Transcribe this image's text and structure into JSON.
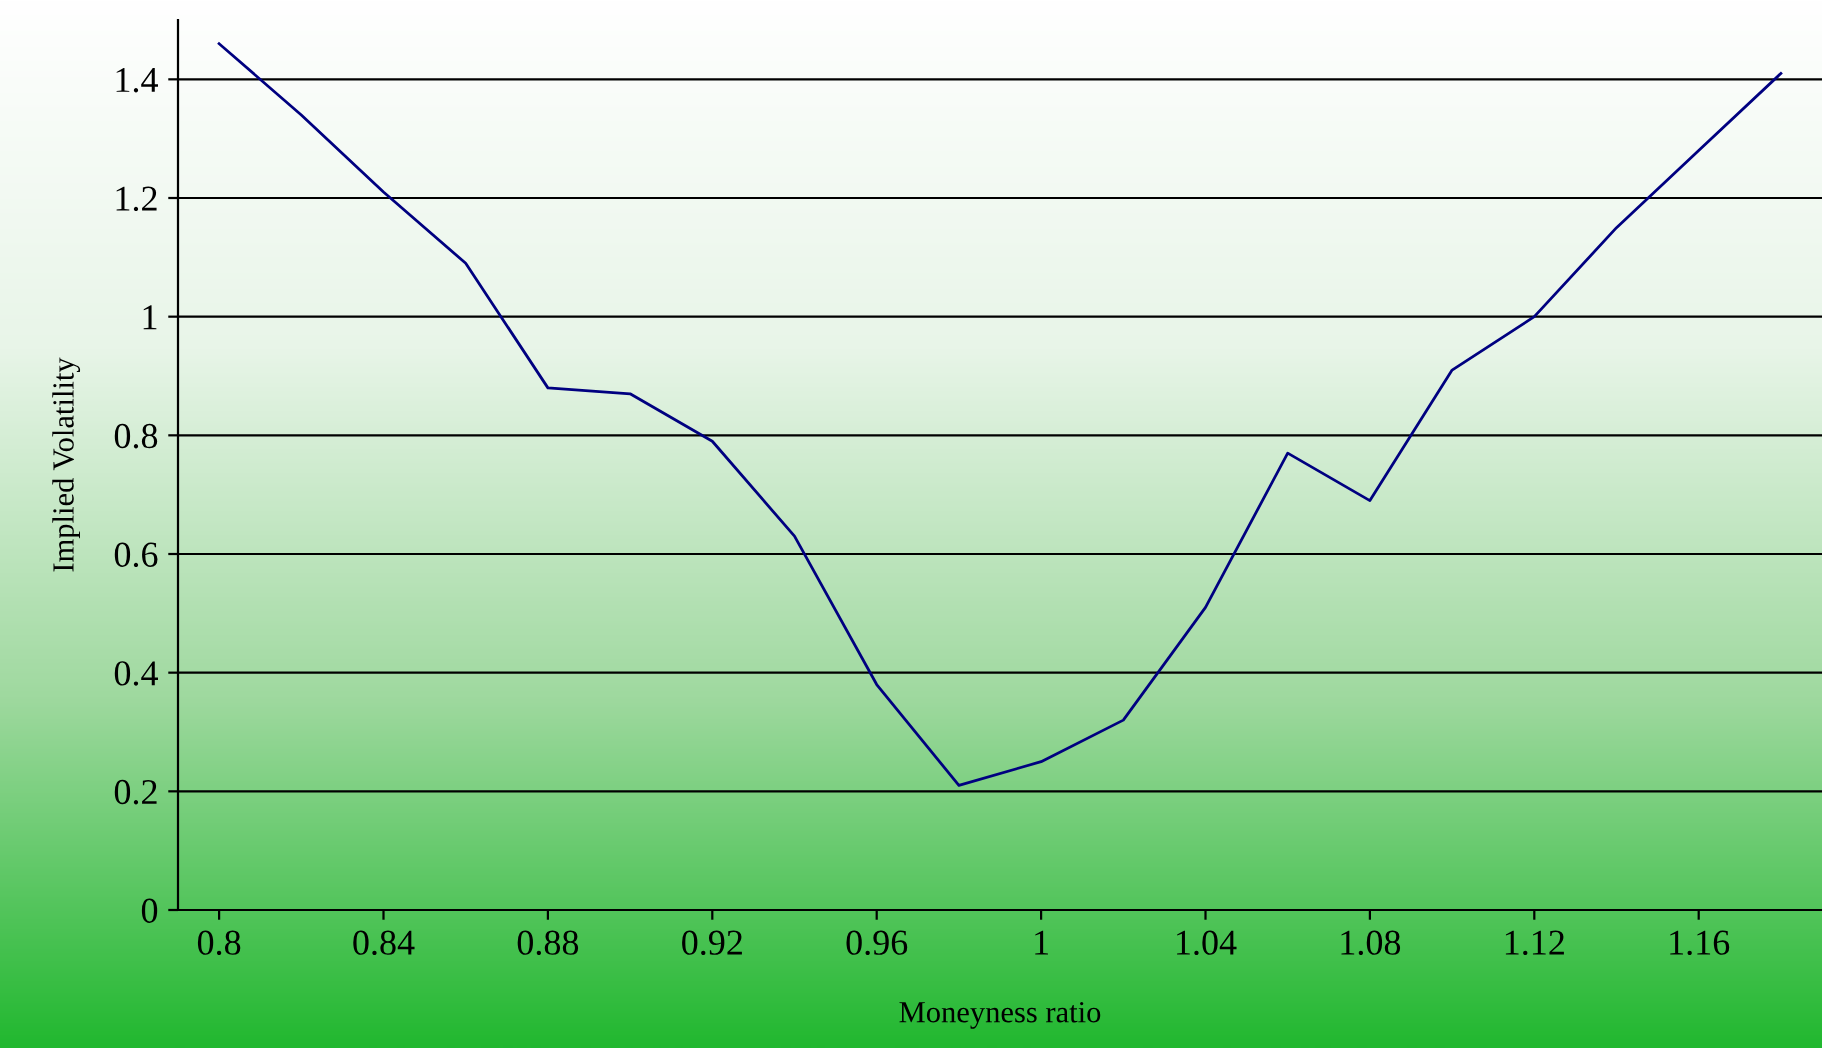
{
  "chart_data": {
    "type": "line",
    "xlabel": "Moneyness ratio",
    "ylabel": "Implied Volatility",
    "x": [
      0.8,
      0.82,
      0.84,
      0.86,
      0.88,
      0.9,
      0.92,
      0.94,
      0.96,
      0.98,
      1.0,
      1.02,
      1.04,
      1.06,
      1.08,
      1.1,
      1.12,
      1.14,
      1.16,
      1.18
    ],
    "series": [
      {
        "color": "#000080",
        "values": [
          1.46,
          1.34,
          1.21,
          1.09,
          0.88,
          0.87,
          0.79,
          0.63,
          0.38,
          0.21,
          0.25,
          0.32,
          0.51,
          0.77,
          0.69,
          0.91,
          1.0,
          1.15,
          1.28,
          1.41
        ]
      }
    ],
    "xlim": [
      0.79,
      1.19
    ],
    "xticks": [
      0.8,
      0.84,
      0.88,
      0.92,
      0.96,
      1,
      1.04,
      1.08,
      1.12,
      1.16
    ],
    "ylim": [
      0,
      1.5
    ],
    "yticks": [
      0,
      0.2,
      0.4,
      0.6,
      0.8,
      1,
      1.2,
      1.4
    ],
    "grid": "y",
    "marker": "none",
    "line_style": "solid"
  }
}
